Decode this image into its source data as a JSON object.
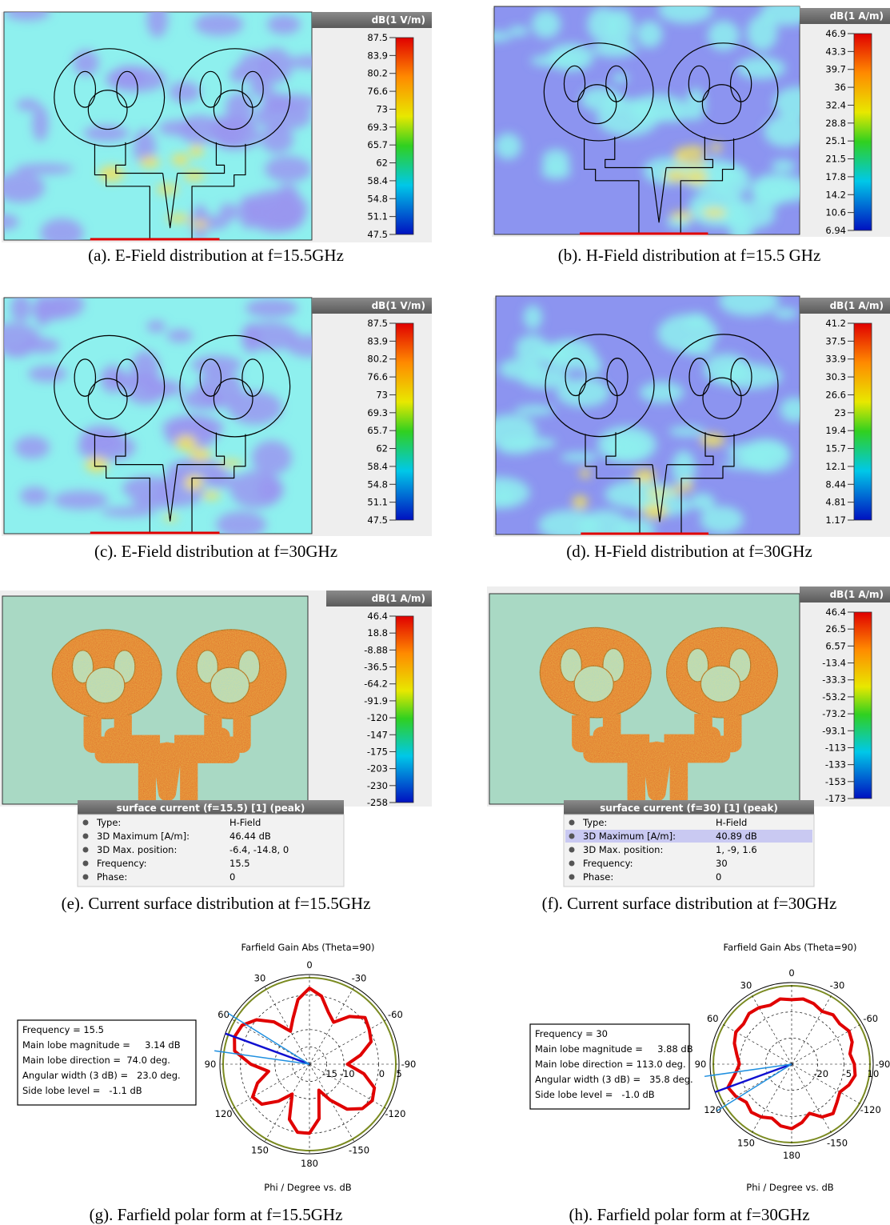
{
  "panels": [
    {
      "caption": "(a). E-Field distribution at f=15.5GHz",
      "unit": "dB(1 V/m)",
      "scale": [
        87.5,
        83.9,
        80.2,
        76.6,
        73,
        69.3,
        65.7,
        62,
        58.4,
        54.8,
        51.1,
        47.5
      ]
    },
    {
      "caption": "(b). H-Field distribution at f=15.5 GHz",
      "unit": "dB(1 A/m)",
      "scale": [
        46.9,
        43.3,
        39.7,
        36,
        32.4,
        28.8,
        25.1,
        21.5,
        17.8,
        14.2,
        10.6,
        6.94
      ]
    },
    {
      "caption": "(c). E-Field distribution at f=30GHz",
      "unit": "dB(1 V/m)",
      "scale": [
        87.5,
        83.9,
        80.2,
        76.6,
        73,
        69.3,
        65.7,
        62,
        58.4,
        54.8,
        51.1,
        47.5
      ]
    },
    {
      "caption": "(d). H-Field distribution at f=30GHz",
      "unit": "dB(1 A/m)",
      "scale": [
        41.2,
        37.5,
        33.9,
        30.3,
        26.6,
        23,
        19.4,
        15.7,
        12.1,
        8.44,
        4.81,
        1.17
      ]
    },
    {
      "caption": "(e). Current surface distribution at f=15.5GHz",
      "unit": "dB(1 A/m)",
      "scale": [
        46.4,
        18.8,
        -8.88,
        -36.5,
        -64.2,
        -91.9,
        -120,
        -147,
        -175,
        -203,
        -230,
        -258
      ],
      "info": {
        "title": "surface current (f=15.5) [1] (peak)",
        "rows": [
          [
            "Type:",
            "H-Field"
          ],
          [
            "3D Maximum [A/m]:",
            "46.44 dB"
          ],
          [
            "3D Max. position:",
            "-6.4, -14.8, 0"
          ],
          [
            "Frequency:",
            "15.5"
          ],
          [
            "Phase:",
            "0"
          ]
        ]
      }
    },
    {
      "caption": "(f). Current surface distribution at f=30GHz",
      "unit": "dB(1 A/m)",
      "scale": [
        46.4,
        26.5,
        6.57,
        -13.4,
        -33.3,
        -53.2,
        -73.2,
        -93.1,
        -113,
        -133,
        -153,
        -173
      ],
      "info": {
        "title": "surface current (f=30) [1] (peak)",
        "rows": [
          [
            "Type:",
            "H-Field"
          ],
          [
            "3D Maximum [A/m]:",
            "40.89 dB"
          ],
          [
            "3D Max. position:",
            "1, -9, 1.6"
          ],
          [
            "Frequency:",
            "30"
          ],
          [
            "Phase:",
            "0"
          ]
        ]
      }
    }
  ],
  "farfields": [
    {
      "caption": "(g). Farfield polar form at f=15.5GHz",
      "title": "Farfield Gain Abs (Theta=90)",
      "xlabel": "Phi / Degree vs. dB",
      "info": [
        "Frequency = 15.5",
        "Main lobe magnitude =     3.14 dB",
        "Main lobe direction =  74.0 deg.",
        "Angular width (3 dB) =   23.0 deg.",
        "Side lobe level =   -1.1 dB"
      ],
      "angle_ticks": [
        0,
        30,
        60,
        90,
        120,
        150,
        180,
        -150,
        -120,
        -90,
        -60,
        -30
      ],
      "rlim": [
        -20,
        5
      ],
      "rticks": [
        -15,
        -10,
        0,
        5
      ],
      "color": "#e00000",
      "phi": [
        0,
        10,
        20,
        30,
        40,
        50,
        60,
        70,
        80,
        90,
        100,
        110,
        120,
        130,
        140,
        150,
        160,
        170,
        180,
        190,
        200,
        210,
        220,
        230,
        240,
        250,
        260,
        270,
        280,
        290,
        300,
        310,
        320,
        330,
        340,
        350
      ],
      "values": [
        2,
        -1,
        -6,
        -9,
        -4,
        0,
        2.5,
        3.1,
        2,
        -3,
        -8,
        -4,
        -1,
        -2,
        -6,
        -10,
        -3,
        0,
        0,
        -4,
        -12,
        -8,
        -3,
        0,
        1,
        0,
        -4,
        -9,
        -5,
        -1,
        0,
        1,
        -2,
        -6,
        -4,
        0
      ]
    },
    {
      "caption": "(h). Farfield polar form at f=30GHz",
      "title": "Farfield Gain Abs (Theta=90)",
      "xlabel": "Phi / Degree vs. dB",
      "info": [
        "Frequency = 30",
        "Main lobe magnitude =     3.88 dB",
        "Main lobe direction = 113.0 deg.",
        "Angular width (3 dB) =   35.8 deg.",
        "Side lobe level =   -1.0 dB"
      ],
      "angle_ticks": [
        0,
        30,
        60,
        90,
        120,
        150,
        180,
        -150,
        -120,
        -90,
        -60,
        -30
      ],
      "rlim": [
        -35,
        10
      ],
      "rticks": [
        -20,
        -5,
        10
      ],
      "color": "#e00000",
      "phi": [
        0,
        10,
        20,
        30,
        40,
        50,
        60,
        70,
        80,
        90,
        100,
        110,
        120,
        130,
        140,
        150,
        160,
        170,
        180,
        190,
        200,
        210,
        220,
        230,
        240,
        250,
        260,
        270,
        280,
        290,
        300,
        310,
        320,
        330,
        340,
        350
      ],
      "values": [
        2,
        3,
        1,
        2.5,
        3,
        1,
        2,
        0,
        -3,
        -5,
        -2,
        3.9,
        2,
        -1,
        1,
        0,
        -2,
        1,
        2,
        -1,
        -5,
        0,
        2,
        -1,
        -3,
        0,
        2,
        1,
        -1,
        2,
        3,
        1,
        2,
        0,
        2,
        3
      ]
    }
  ]
}
